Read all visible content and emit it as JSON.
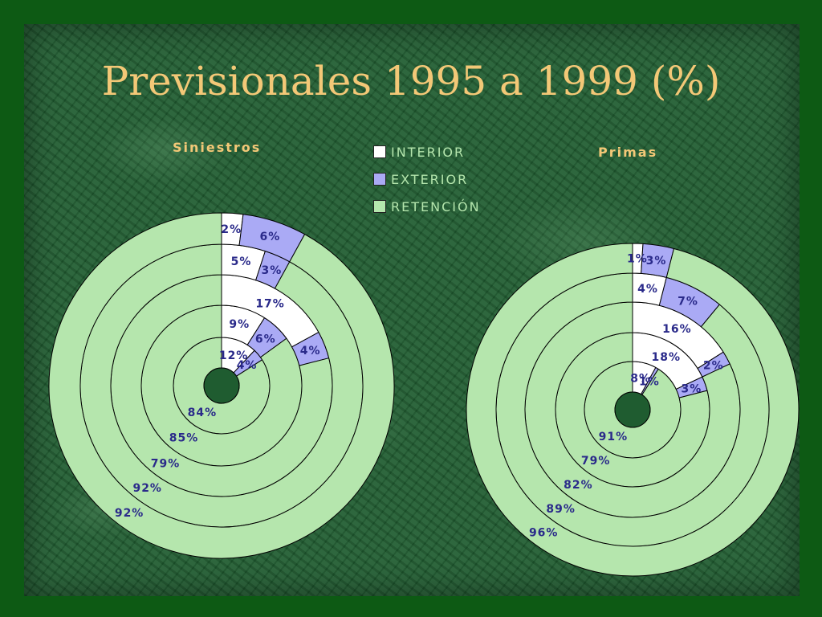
{
  "title": "Previsionales 1995 a 1999 (%)",
  "legend": [
    {
      "label": "INTERIOR",
      "color": "#ffffff"
    },
    {
      "label": "EXTERIOR",
      "color": "#aaaaf5"
    },
    {
      "label": "RETENCIÓN",
      "color": "#b5e6ad"
    }
  ],
  "text_colors": {
    "title": "#f3c877",
    "legend": "#b5e6ad",
    "labels": "#2a2a8a"
  },
  "chart_data": [
    {
      "type": "pie",
      "title": "Siniestros",
      "series_names": [
        "INTERIOR",
        "EXTERIOR",
        "RETENCIÓN"
      ],
      "rings": [
        {
          "values": [
            12,
            4,
            84
          ],
          "labels": [
            "12%",
            "4%",
            "84%"
          ]
        },
        {
          "values": [
            9,
            6,
            85
          ],
          "labels": [
            "9%",
            "6%",
            "85%"
          ]
        },
        {
          "values": [
            17,
            4,
            79
          ],
          "labels": [
            "17%",
            "4%",
            "79%"
          ]
        },
        {
          "values": [
            5,
            3,
            92
          ],
          "labels": [
            "5%",
            "3%",
            "92%"
          ]
        },
        {
          "values": [
            2,
            6,
            92
          ],
          "labels": [
            "2%",
            "6%",
            "92%"
          ]
        }
      ]
    },
    {
      "type": "pie",
      "title": "Primas",
      "series_names": [
        "INTERIOR",
        "EXTERIOR",
        "RETENCIÓN"
      ],
      "rings": [
        {
          "values": [
            8,
            1,
            91
          ],
          "labels": [
            "8%",
            "1%",
            "91%"
          ]
        },
        {
          "values": [
            18,
            3,
            79
          ],
          "labels": [
            "18%",
            "3%",
            "79%"
          ]
        },
        {
          "values": [
            16,
            2,
            82
          ],
          "labels": [
            "16%",
            "2%",
            "82%"
          ]
        },
        {
          "values": [
            4,
            7,
            89
          ],
          "labels": [
            "4%",
            "7%",
            "89%"
          ]
        },
        {
          "values": [
            1,
            3,
            96
          ],
          "labels": [
            "1%",
            "3%",
            "96%"
          ]
        }
      ]
    }
  ]
}
